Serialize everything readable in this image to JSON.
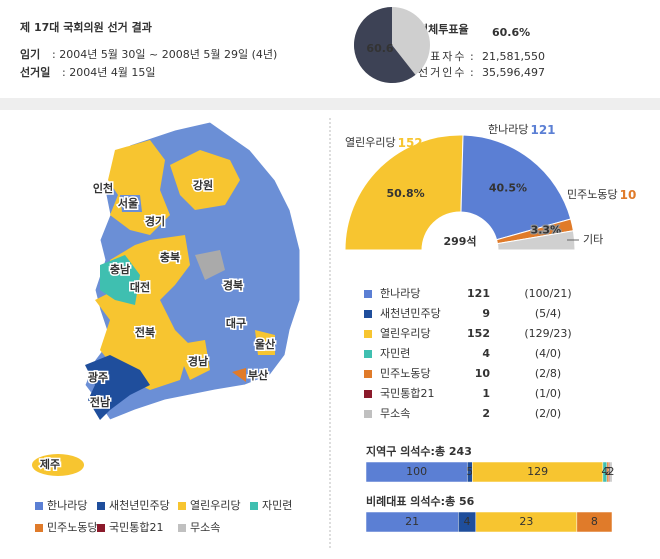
{
  "header": {
    "title": "제 17대 국회의원 선거 결과",
    "term_label": "임기",
    "term": ": 2004년 5월 30일 ~ 2008년 5월 29일 (4년)",
    "election_label": "선거일",
    "election": ": 2004년 4월 15일",
    "turnout_label": "전체투표율",
    "stats": [
      {
        "label": "투표자수",
        "value": "21,581,550"
      },
      {
        "label": "선거인수",
        "value": "35,596,497"
      }
    ]
  },
  "map": {
    "regions": [
      "인천",
      "서울",
      "경기",
      "강원",
      "충북",
      "충남",
      "대전",
      "경북",
      "대구",
      "전북",
      "울산",
      "경남",
      "광주",
      "부산",
      "전남",
      "제주"
    ]
  },
  "table": {
    "rows": [
      {
        "party": "한나라당",
        "seats": 121,
        "detail": "(100/21)",
        "color": "#5b7fd4"
      },
      {
        "party": "새천년민주당",
        "seats": 9,
        "detail": "(5/4)",
        "color": "#1f4e9c"
      },
      {
        "party": "열린우리당",
        "seats": 152,
        "detail": "(129/23)",
        "color": "#f7c530"
      },
      {
        "party": "자민련",
        "seats": 4,
        "detail": "(4/0)",
        "color": "#3fbfb0"
      },
      {
        "party": "민주노동당",
        "seats": 10,
        "detail": "(2/8)",
        "color": "#e07b2a"
      },
      {
        "party": "국민통합21",
        "seats": 1,
        "detail": "(1/0)",
        "color": "#8b1a2b"
      },
      {
        "party": "무소속",
        "seats": 2,
        "detail": "(2/0)",
        "color": "#c0c0c0"
      }
    ]
  },
  "chart_data": [
    {
      "type": "pie",
      "values": [
        60.6
      ],
      "value_labels": [
        "60.6%"
      ],
      "color": "#3d4255",
      "rest_color": "#cfcfcf"
    },
    {
      "type": "parliament",
      "total_label": "299석",
      "series": [
        {
          "name": "열린우리당",
          "value": 152,
          "share": "50.8%",
          "color": "#f7c530"
        },
        {
          "name": "한나라당",
          "value": 121,
          "share": "40.5%",
          "color": "#5b7fd4"
        },
        {
          "name": "민주노동당",
          "value": 10,
          "share": "3.3%",
          "color": "#e07b2a"
        },
        {
          "name": "기타",
          "value": 16,
          "color": "#d0d0d0"
        }
      ]
    },
    {
      "type": "stacked-bar",
      "title": "지역구 의석수:총 243",
      "values": [
        100,
        5,
        129,
        4,
        2,
        1,
        2
      ],
      "colors": [
        "#5b7fd4",
        "#1f4e9c",
        "#f7c530",
        "#3fbfb0",
        "#e07b2a",
        "#8b1a2b",
        "#c0c0c0"
      ]
    },
    {
      "type": "stacked-bar",
      "title": "비례대표 의석수:총 56",
      "values": [
        21,
        4,
        23,
        8
      ],
      "colors": [
        "#5b7fd4",
        "#1f4e9c",
        "#f7c530",
        "#e07b2a"
      ]
    }
  ]
}
